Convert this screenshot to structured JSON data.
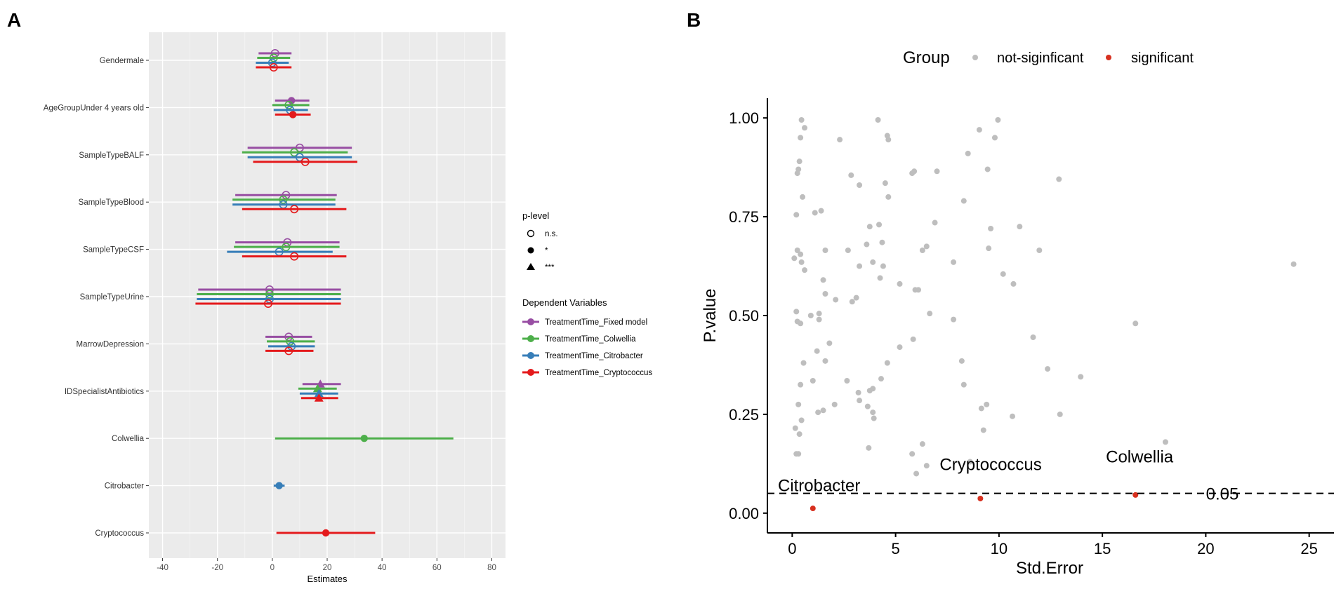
{
  "panel_a": {
    "panel_label": "A",
    "xlabel": "Estimates",
    "legend_plevel": {
      "title": "p-level",
      "items": [
        {
          "label": "n.s.",
          "shape": "open-circle"
        },
        {
          "label": "*",
          "shape": "filled-circle"
        },
        {
          "label": "***",
          "shape": "triangle"
        }
      ]
    },
    "legend_dv": {
      "title": "Dependent Variables",
      "items": [
        {
          "label": "TreatmentTime_Fixed model",
          "color": "#984ea3"
        },
        {
          "label": "TreatmentTime_Colwellia",
          "color": "#4daf4a"
        },
        {
          "label": "TreatmentTime_Citrobacter",
          "color": "#377eb8"
        },
        {
          "label": "TreatmentTime_Cryptococcus",
          "color": "#e41a1c"
        }
      ]
    }
  },
  "panel_b": {
    "panel_label": "B",
    "legend": {
      "title": "Group",
      "items": [
        {
          "label": "not-siginficant",
          "color": "#bebebe"
        },
        {
          "label": "significant",
          "color": "#d7301f"
        }
      ]
    },
    "threshold_label": "0.05"
  },
  "chart_data": [
    {
      "type": "forest",
      "title": "",
      "xlabel": "Estimates",
      "ylabel": "",
      "xlim": [
        -45,
        85
      ],
      "xticks": [
        -40,
        -20,
        0,
        20,
        40,
        60,
        80
      ],
      "xtick_labels": [
        "-40",
        "-20",
        "0",
        "20",
        "40",
        "60",
        "80"
      ],
      "categories": [
        "Gendermale",
        "AgeGroupUnder 4 years old",
        "SampleTypeBALF",
        "SampleTypeBlood",
        "SampleTypeCSF",
        "SampleTypeUrine",
        "MarrowDepression",
        "IDSpecialistAntibiotics",
        "Colwellia",
        "Citrobacter",
        "Cryptococcus"
      ],
      "series": [
        {
          "name": "TreatmentTime_Fixed model",
          "color": "#984ea3",
          "points": [
            {
              "category": "Gendermale",
              "est": 1,
              "lo": -5,
              "hi": 7,
              "p": "n.s."
            },
            {
              "category": "AgeGroupUnder 4 years old",
              "est": 7,
              "lo": 1,
              "hi": 13.5,
              "p": "*"
            },
            {
              "category": "SampleTypeBALF",
              "est": 10,
              "lo": -9,
              "hi": 29,
              "p": "n.s."
            },
            {
              "category": "SampleTypeBlood",
              "est": 5,
              "lo": -13.5,
              "hi": 23.5,
              "p": "n.s."
            },
            {
              "category": "SampleTypeCSF",
              "est": 5.5,
              "lo": -13.5,
              "hi": 24.5,
              "p": "n.s."
            },
            {
              "category": "SampleTypeUrine",
              "est": -1,
              "lo": -27,
              "hi": 25,
              "p": "n.s."
            },
            {
              "category": "MarrowDepression",
              "est": 6,
              "lo": -2.5,
              "hi": 14.5,
              "p": "n.s."
            },
            {
              "category": "IDSpecialistAntibiotics",
              "est": 17.5,
              "lo": 11,
              "hi": 25,
              "p": "***"
            }
          ]
        },
        {
          "name": "TreatmentTime_Colwellia",
          "color": "#4daf4a",
          "points": [
            {
              "category": "Gendermale",
              "est": 0.5,
              "lo": -5.5,
              "hi": 6.5,
              "p": "n.s."
            },
            {
              "category": "AgeGroupUnder 4 years old",
              "est": 6,
              "lo": 0,
              "hi": 13.5,
              "p": "n.s."
            },
            {
              "category": "SampleTypeBALF",
              "est": 8,
              "lo": -11,
              "hi": 27.5,
              "p": "n.s."
            },
            {
              "category": "SampleTypeBlood",
              "est": 4,
              "lo": -14.5,
              "hi": 23,
              "p": "n.s."
            },
            {
              "category": "SampleTypeCSF",
              "est": 5,
              "lo": -14,
              "hi": 24.5,
              "p": "n.s."
            },
            {
              "category": "SampleTypeUrine",
              "est": -1,
              "lo": -27.5,
              "hi": 25,
              "p": "n.s."
            },
            {
              "category": "MarrowDepression",
              "est": 6.5,
              "lo": -2,
              "hi": 15.5,
              "p": "n.s."
            },
            {
              "category": "IDSpecialistAntibiotics",
              "est": 16.5,
              "lo": 9.5,
              "hi": 23.5,
              "p": "***"
            },
            {
              "category": "Colwellia",
              "est": 33.5,
              "lo": 1,
              "hi": 66,
              "p": "*"
            }
          ]
        },
        {
          "name": "TreatmentTime_Citrobacter",
          "color": "#377eb8",
          "points": [
            {
              "category": "Gendermale",
              "est": 0,
              "lo": -6,
              "hi": 6,
              "p": "n.s."
            },
            {
              "category": "AgeGroupUnder 4 years old",
              "est": 6.5,
              "lo": 0.5,
              "hi": 13,
              "p": "n.s."
            },
            {
              "category": "SampleTypeBALF",
              "est": 10,
              "lo": -9,
              "hi": 29,
              "p": "n.s."
            },
            {
              "category": "SampleTypeBlood",
              "est": 4,
              "lo": -14.5,
              "hi": 23,
              "p": "n.s."
            },
            {
              "category": "SampleTypeCSF",
              "est": 2.5,
              "lo": -16.5,
              "hi": 22,
              "p": "n.s."
            },
            {
              "category": "SampleTypeUrine",
              "est": -1,
              "lo": -27.5,
              "hi": 25,
              "p": "n.s."
            },
            {
              "category": "MarrowDepression",
              "est": 7,
              "lo": -1.5,
              "hi": 15.5,
              "p": "n.s."
            },
            {
              "category": "IDSpecialistAntibiotics",
              "est": 17,
              "lo": 10,
              "hi": 24,
              "p": "***"
            },
            {
              "category": "Citrobacter",
              "est": 2.5,
              "lo": 0.5,
              "hi": 4.5,
              "p": "*"
            }
          ]
        },
        {
          "name": "TreatmentTime_Cryptococcus",
          "color": "#e41a1c",
          "points": [
            {
              "category": "Gendermale",
              "est": 0.5,
              "lo": -6,
              "hi": 7,
              "p": "n.s."
            },
            {
              "category": "AgeGroupUnder 4 years old",
              "est": 7.5,
              "lo": 1,
              "hi": 14,
              "p": "*"
            },
            {
              "category": "SampleTypeBALF",
              "est": 12,
              "lo": -7,
              "hi": 31,
              "p": "n.s."
            },
            {
              "category": "SampleTypeBlood",
              "est": 8,
              "lo": -11,
              "hi": 27,
              "p": "n.s."
            },
            {
              "category": "SampleTypeCSF",
              "est": 8,
              "lo": -11,
              "hi": 27,
              "p": "n.s."
            },
            {
              "category": "SampleTypeUrine",
              "est": -1.5,
              "lo": -28,
              "hi": 25,
              "p": "n.s."
            },
            {
              "category": "MarrowDepression",
              "est": 6,
              "lo": -2.5,
              "hi": 15,
              "p": "n.s."
            },
            {
              "category": "IDSpecialistAntibiotics",
              "est": 17,
              "lo": 10.5,
              "hi": 24,
              "p": "***"
            },
            {
              "category": "Cryptococcus",
              "est": 19.5,
              "lo": 1.5,
              "hi": 37.5,
              "p": "*"
            }
          ]
        }
      ]
    },
    {
      "type": "scatter",
      "title": "",
      "xlabel": "Std.Error",
      "ylabel": "P.value",
      "xlim": [
        -1.2,
        26.2
      ],
      "ylim": [
        -0.05,
        1.05
      ],
      "xticks": [
        0,
        5,
        10,
        15,
        20,
        25
      ],
      "xtick_labels": [
        "0",
        "5",
        "10",
        "15",
        "20",
        "25"
      ],
      "yticks": [
        0,
        0.25,
        0.5,
        0.75,
        1
      ],
      "ytick_labels": [
        "0.00",
        "0.25",
        "0.50",
        "0.75",
        "1.00"
      ],
      "threshold": 0.05,
      "series": [
        {
          "name": "not-siginficant",
          "color": "#bebebe",
          "points": [
            [
              0.45,
              0.995
            ],
            [
              0.6,
              0.975
            ],
            [
              0.4,
              0.95
            ],
            [
              0.35,
              0.89
            ],
            [
              0.3,
              0.87
            ],
            [
              0.25,
              0.86
            ],
            [
              0.5,
              0.8
            ],
            [
              0.2,
              0.755
            ],
            [
              1.1,
              0.76
            ],
            [
              1.4,
              0.765
            ],
            [
              0.1,
              0.645
            ],
            [
              0.25,
              0.665
            ],
            [
              0.4,
              0.655
            ],
            [
              0.45,
              0.635
            ],
            [
              0.6,
              0.615
            ],
            [
              1.6,
              0.665
            ],
            [
              0.2,
              0.51
            ],
            [
              0.25,
              0.485
            ],
            [
              0.4,
              0.48
            ],
            [
              0.9,
              0.5
            ],
            [
              1.3,
              0.49
            ],
            [
              1.3,
              0.505
            ],
            [
              1.5,
              0.59
            ],
            [
              1.6,
              0.555
            ],
            [
              0.55,
              0.38
            ],
            [
              1.2,
              0.41
            ],
            [
              1.6,
              0.385
            ],
            [
              1.8,
              0.43
            ],
            [
              2.1,
              0.54
            ],
            [
              1.0,
              0.335
            ],
            [
              0.4,
              0.325
            ],
            [
              0.3,
              0.275
            ],
            [
              0.15,
              0.215
            ],
            [
              0.35,
              0.2
            ],
            [
              0.45,
              0.235
            ],
            [
              0.2,
              0.15
            ],
            [
              0.3,
              0.15
            ],
            [
              1.25,
              0.255
            ],
            [
              1.5,
              0.26
            ],
            [
              2.05,
              0.275
            ],
            [
              2.3,
              0.945
            ],
            [
              4.15,
              0.995
            ],
            [
              4.6,
              0.955
            ],
            [
              4.65,
              0.945
            ],
            [
              2.85,
              0.855
            ],
            [
              3.25,
              0.83
            ],
            [
              4.5,
              0.835
            ],
            [
              4.65,
              0.8
            ],
            [
              5.8,
              0.86
            ],
            [
              5.9,
              0.865
            ],
            [
              7.0,
              0.865
            ],
            [
              3.6,
              0.68
            ],
            [
              3.75,
              0.725
            ],
            [
              4.2,
              0.73
            ],
            [
              4.35,
              0.685
            ],
            [
              3.9,
              0.635
            ],
            [
              3.25,
              0.625
            ],
            [
              4.4,
              0.625
            ],
            [
              4.25,
              0.595
            ],
            [
              2.7,
              0.665
            ],
            [
              2.9,
              0.535
            ],
            [
              3.1,
              0.545
            ],
            [
              5.2,
              0.58
            ],
            [
              5.95,
              0.565
            ],
            [
              6.1,
              0.565
            ],
            [
              6.3,
              0.665
            ],
            [
              6.5,
              0.675
            ],
            [
              6.9,
              0.735
            ],
            [
              6.65,
              0.505
            ],
            [
              5.2,
              0.42
            ],
            [
              5.85,
              0.44
            ],
            [
              4.6,
              0.38
            ],
            [
              4.3,
              0.34
            ],
            [
              3.75,
              0.31
            ],
            [
              3.9,
              0.315
            ],
            [
              2.65,
              0.335
            ],
            [
              3.2,
              0.305
            ],
            [
              3.25,
              0.285
            ],
            [
              3.65,
              0.27
            ],
            [
              3.9,
              0.255
            ],
            [
              3.95,
              0.24
            ],
            [
              3.7,
              0.165
            ],
            [
              5.8,
              0.15
            ],
            [
              6.0,
              0.1
            ],
            [
              6.5,
              0.12
            ],
            [
              6.3,
              0.175
            ],
            [
              8.6,
              0.13
            ],
            [
              8.3,
              0.79
            ],
            [
              8.5,
              0.91
            ],
            [
              9.05,
              0.97
            ],
            [
              9.8,
              0.95
            ],
            [
              9.95,
              0.995
            ],
            [
              9.45,
              0.87
            ],
            [
              7.8,
              0.635
            ],
            [
              9.6,
              0.72
            ],
            [
              9.5,
              0.67
            ],
            [
              10.2,
              0.605
            ],
            [
              10.7,
              0.58
            ],
            [
              7.8,
              0.49
            ],
            [
              8.2,
              0.385
            ],
            [
              8.3,
              0.325
            ],
            [
              9.15,
              0.265
            ],
            [
              9.4,
              0.275
            ],
            [
              9.25,
              0.21
            ],
            [
              10.65,
              0.245
            ],
            [
              11.0,
              0.725
            ],
            [
              11.95,
              0.665
            ],
            [
              12.9,
              0.845
            ],
            [
              11.65,
              0.445
            ],
            [
              12.35,
              0.365
            ],
            [
              12.95,
              0.25
            ],
            [
              13.95,
              0.345
            ],
            [
              16.6,
              0.48
            ],
            [
              18.05,
              0.18
            ],
            [
              24.25,
              0.63
            ]
          ]
        },
        {
          "name": "significant",
          "color": "#d7301f",
          "points": [
            [
              1.0,
              0.012
            ],
            [
              9.1,
              0.037
            ],
            [
              16.6,
              0.046
            ]
          ],
          "labels": [
            "Citrobacter",
            "Cryptococcus",
            "Colwellia"
          ]
        }
      ]
    }
  ]
}
